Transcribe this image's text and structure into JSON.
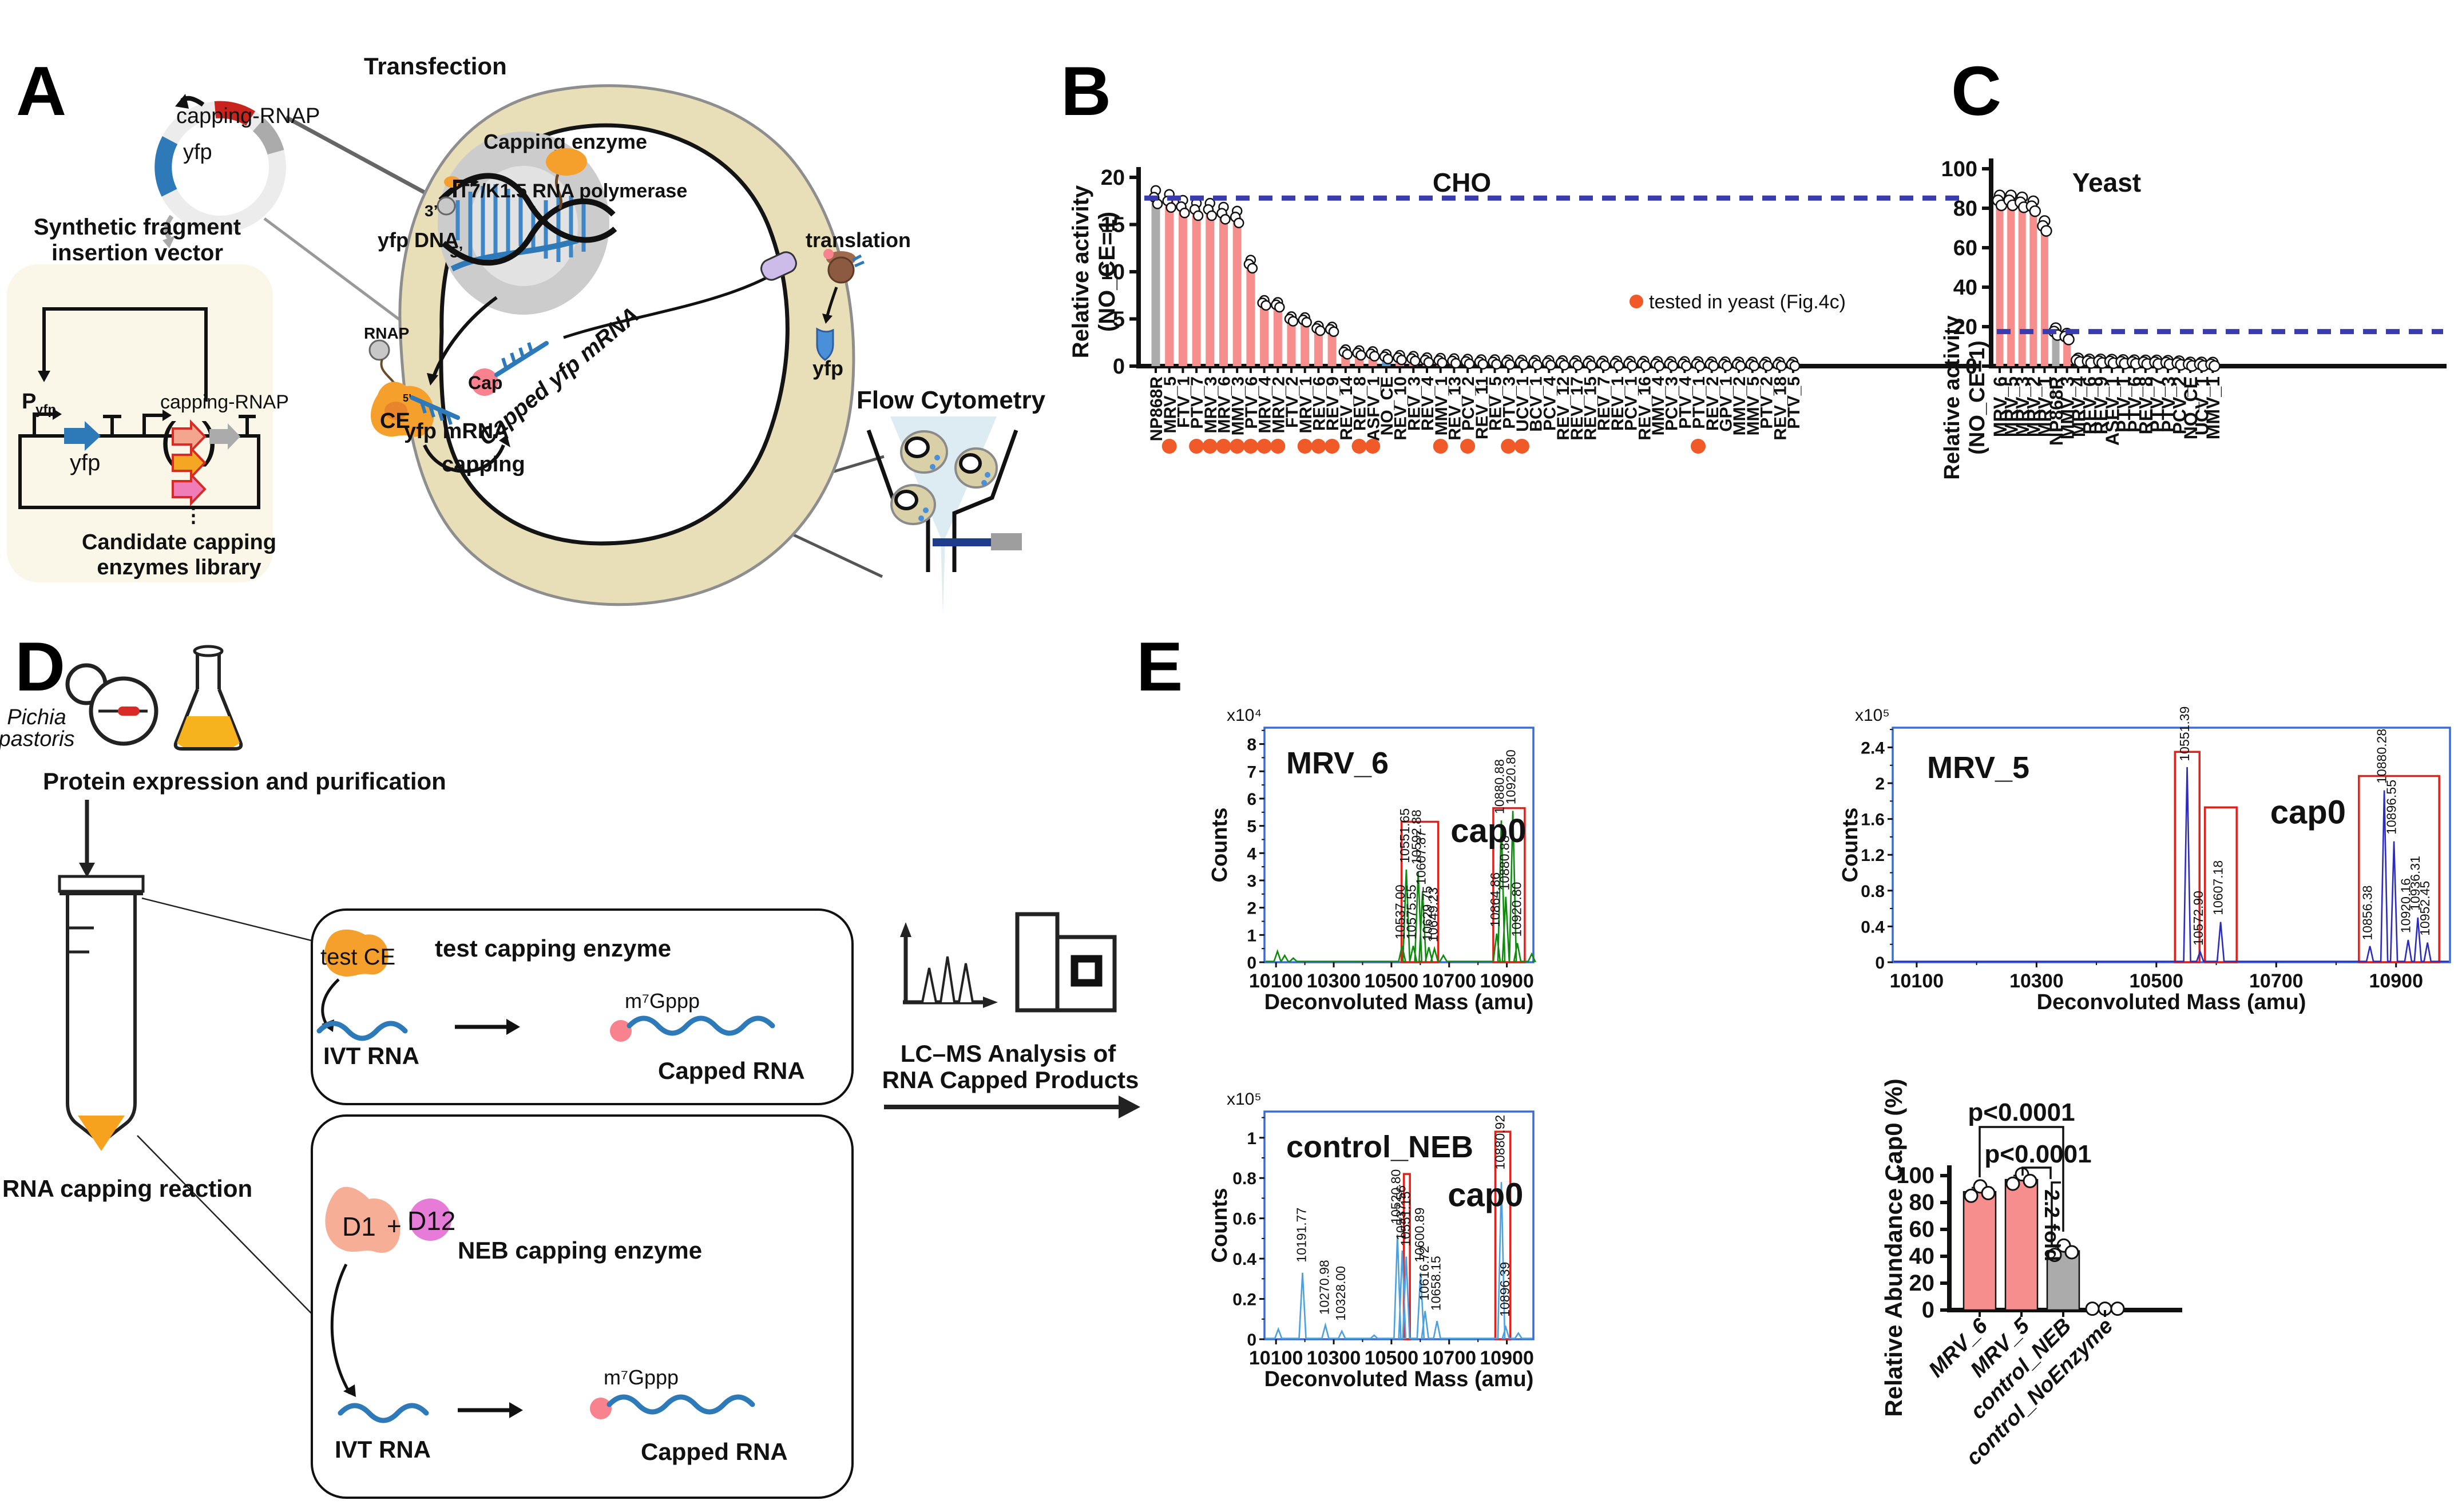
{
  "panel_labels": {
    "a": "A",
    "b": "B",
    "c": "C",
    "d": "D",
    "e": "E"
  },
  "panelA": {
    "transfection": "Transfection",
    "plasmid_gene_top": "capping-RNAP",
    "plasmid_gene_left": "yfp",
    "vector_line1": "Synthetic fragment",
    "vector_line2": "insertion vector",
    "promoter": "P",
    "promoter_sub": "yfp",
    "construct_gene": "yfp",
    "construct_insert": "capping-RNAP",
    "library_line1": "Candidate capping",
    "library_line2": "enzymes library",
    "dots": "⋮",
    "capping_enzyme": "Capping enzyme",
    "polymerase": "T7/K1.5 RNA polymerase",
    "three_prime": "3’",
    "five_prime": "5’",
    "yfp_dna": "yfp DNA",
    "rnap": "RNAP",
    "ce": "CE",
    "mrna_five_prime": "5’",
    "yfp_mrna": "yfp mRNA",
    "capping": "capping",
    "cap": "Cap",
    "capped_mrna": "Capped yfp mRNA",
    "translation": "translation",
    "yfp_protein": "yfp",
    "flow_cytometry": "Flow Cytometry"
  },
  "panelD": {
    "organism_line1": "Pichia",
    "organism_line2": "pastoris",
    "step1": "Protein expression and purification",
    "step2": "RNA capping reaction",
    "box1_title": "test capping enzyme",
    "box1_enzyme": "test CE",
    "ivt_rna": "IVT RNA",
    "cap_label": "m⁷Gppp",
    "capped_rna": "Capped RNA",
    "box2_title": "NEB capping enzyme",
    "d1": "D1",
    "plus": "+",
    "d12": "D12",
    "ivt_rna2": "IVT RNA",
    "cap_label2": "m⁷Gppp",
    "capped_rna2": "Capped RNA",
    "lcms_line1": "LC–MS Analysis of",
    "lcms_line2": "RNA Capped Products"
  },
  "chart_data": [
    {
      "id": "cho",
      "type": "bar",
      "title": "CHO",
      "ylabel_line1": "Relative activity",
      "ylabel_line2": "(NO_CE=1)",
      "ylim": [
        0,
        20
      ],
      "yticks": [
        0,
        5,
        10,
        15,
        20
      ],
      "dashed_line_y": 17.8,
      "legend": {
        "marker_color": "#F05A28",
        "text": "tested in yeast (Fig.4c)"
      },
      "default_color": "#F68E8E",
      "bar_colors": {
        "NP868R": "#ABABAB",
        "NO_CE": "#5B9BD5"
      },
      "categories": [
        "NP868R",
        "MRV_5",
        "FTV_1",
        "PTV_7",
        "MRV_3",
        "MRV_6",
        "MMV_3",
        "PTV_6",
        "MRV_4",
        "MRV_2",
        "FTV_2",
        "MRV_1",
        "REV_6",
        "REV_9",
        "REV_14",
        "REV_8",
        "ASFV_1",
        "NO_CE",
        "REV_10",
        "REV_3",
        "REV_4",
        "MMV_1",
        "REV_13",
        "PCV_2",
        "REV_11",
        "REV_5",
        "PTV_3",
        "UCV_1",
        "BCV_1",
        "PCV_4",
        "REV_12",
        "REV_17",
        "REV_15",
        "REV_7",
        "REV_1",
        "PCV_1",
        "REV_16",
        "MMV_4",
        "PCV_3",
        "PTV_4",
        "PTV_1",
        "REV_2",
        "GPV_1",
        "MMV_2",
        "MMV_5",
        "PTV_2",
        "REV_18",
        "PTV_5"
      ],
      "values": [
        17.9,
        17.5,
        16.9,
        16.6,
        16.6,
        16.2,
        15.8,
        10.8,
        6.7,
        6.5,
        5.0,
        4.9,
        4.0,
        3.9,
        1.5,
        1.4,
        1.3,
        1.0,
        0.9,
        0.8,
        0.65,
        0.6,
        0.55,
        0.5,
        0.45,
        0.45,
        0.42,
        0.4,
        0.38,
        0.36,
        0.35,
        0.34,
        0.32,
        0.3,
        0.3,
        0.28,
        0.28,
        0.26,
        0.25,
        0.25,
        0.24,
        0.22,
        0.22,
        0.2,
        0.2,
        0.2,
        0.18,
        0.18
      ],
      "tested_in_yeast": [
        "MRV_5",
        "PTV_7",
        "MRV_3",
        "MRV_6",
        "MMV_3",
        "PTV_6",
        "MRV_4",
        "MRV_2",
        "MRV_1",
        "REV_6",
        "REV_9",
        "REV_8",
        "ASFV_1",
        "MMV_1",
        "PCV_2",
        "PTV_3",
        "UCV_1",
        "PTV_1"
      ]
    },
    {
      "id": "yeast",
      "type": "bar",
      "title": "Yeast",
      "ylabel_line1": "Relative activity",
      "ylabel_line2": "(NO_CE=1)",
      "ylim": [
        0,
        100
      ],
      "yticks": [
        0,
        20,
        40,
        60,
        80,
        100
      ],
      "dashed_line_y": 17.5,
      "default_color": "#F68E8E",
      "bar_colors": {
        "NP868R": "#ABABAB",
        "NO_CE": "#5B9BD5"
      },
      "categories": [
        "MRV_6",
        "MRV_5",
        "MRV_3",
        "MRV_2",
        "MRV_1",
        "NP868R",
        "MMV_3",
        "MRV_4",
        "REV_6",
        "REV_9",
        "ASFV_1",
        "PTV_1",
        "PTV_6",
        "REV_8",
        "PTV_7",
        "PTV_3",
        "PCV_2",
        "NO_CE",
        "UCV_1",
        "MMV_1"
      ],
      "values": [
        84,
        84,
        83,
        81,
        71,
        17.5,
        15,
        3,
        2.5,
        2.5,
        2.4,
        2.2,
        2.1,
        2,
        2,
        1.8,
        1.6,
        1,
        1,
        0.9
      ]
    },
    {
      "id": "ms_mrv6",
      "type": "line",
      "title": "MRV_6",
      "trace_color": "#0F8A0F",
      "scale_label": "x10⁴",
      "ylabel": "Counts",
      "xlabel": "Deconvoluted Mass (amu)",
      "xlim": [
        10060,
        10992
      ],
      "xticks": [
        10100,
        10300,
        10500,
        10700,
        10900
      ],
      "ylim": [
        0,
        8.6
      ],
      "yticks": [
        0,
        1,
        2,
        3,
        4,
        5,
        6,
        7,
        8
      ],
      "peaks": [
        [
          10105,
          0.4
        ],
        [
          10130,
          0.25
        ],
        [
          10160,
          0.15
        ],
        [
          10537,
          0.6
        ],
        [
          10551.65,
          3.4
        ],
        [
          10575.55,
          0.6
        ],
        [
          10592.88,
          3.3
        ],
        [
          10607.87,
          2.6
        ],
        [
          10629.75,
          0.55
        ],
        [
          10649.23,
          0.5
        ],
        [
          10680,
          0.25
        ],
        [
          10864.86,
          1.05
        ],
        [
          10880.88,
          5.2
        ],
        [
          10896.5,
          2.4
        ],
        [
          10920.8,
          5.55
        ],
        [
          10936.5,
          0.7
        ],
        [
          10986,
          0.3
        ]
      ],
      "peak_labels": [
        [
          "10537.00",
          10528,
          0.75
        ],
        [
          "10551.65",
          10544,
          3.55
        ],
        [
          "10575.55",
          10567,
          0.75
        ],
        [
          "10592.88",
          10585,
          3.5
        ],
        [
          "10607.87",
          10600,
          2.75
        ],
        [
          "10629.75",
          10622,
          0.7
        ],
        [
          "10649.23",
          10642,
          0.65
        ],
        [
          "10864.86",
          10857,
          1.2
        ],
        [
          "10880.88",
          10872,
          5.35
        ],
        [
          "10880.88",
          10890,
          2.55
        ],
        [
          "10920.80",
          10912,
          5.7
        ],
        [
          "10920.80",
          10932,
          0.85
        ]
      ],
      "cap0": {
        "text": "cap0",
        "x": 10705,
        "y": 4.4
      },
      "boxes": [
        [
          10535,
          10662,
          5.15
        ],
        [
          10853,
          10962,
          5.65
        ]
      ]
    },
    {
      "id": "ms_mrv5",
      "type": "line",
      "title": "MRV_5",
      "trace_color": "#2B2BC0",
      "scale_label": "x10⁵",
      "ylabel": "Counts",
      "xlabel": "Deconvoluted Mass (amu)",
      "xlim": [
        10060,
        10990
      ],
      "xticks": [
        10100,
        10300,
        10500,
        10700,
        10900
      ],
      "ylim": [
        0,
        2.62
      ],
      "yticks": [
        0,
        0.4,
        0.8,
        1.2,
        1.6,
        2.0,
        2.4
      ],
      "peaks": [
        [
          10551.39,
          2.18
        ],
        [
          10572.9,
          0.12
        ],
        [
          10607.18,
          0.45
        ],
        [
          10856.38,
          0.18
        ],
        [
          10880.28,
          1.92
        ],
        [
          10896.55,
          1.35
        ],
        [
          10920.16,
          0.25
        ],
        [
          10936.31,
          0.5
        ],
        [
          10952.45,
          0.22
        ]
      ],
      "peak_labels": [
        [
          "10551.39",
          10546,
          2.22
        ],
        [
          "10572.90",
          10569,
          0.16
        ],
        [
          "10607.18",
          10602,
          0.5
        ],
        [
          "10856.38",
          10851,
          0.22
        ],
        [
          "10880.28",
          10875,
          1.97
        ],
        [
          "10896.55",
          10891,
          1.4
        ],
        [
          "10920.16",
          10915,
          0.3
        ],
        [
          "10936.31",
          10931,
          0.55
        ],
        [
          "10952.45",
          10947,
          0.27
        ]
      ],
      "cap0": {
        "text": "cap0",
        "x": 10690,
        "y": 1.55
      },
      "boxes": [
        [
          10531,
          10572,
          2.35
        ],
        [
          10581,
          10634,
          1.73
        ],
        [
          10838,
          10972,
          2.08
        ]
      ]
    },
    {
      "id": "ms_neb",
      "type": "line",
      "title": "control_NEB",
      "trace_color": "#4AA0E0",
      "scale_label": "x10⁵",
      "ylabel": "Counts",
      "xlabel": "Deconvoluted Mass (amu)",
      "xlim": [
        10060,
        10992
      ],
      "xticks": [
        10100,
        10300,
        10500,
        10700,
        10900
      ],
      "ylim": [
        0,
        1.13
      ],
      "yticks": [
        0,
        0.2,
        0.4,
        0.6,
        0.8,
        1
      ],
      "peaks": [
        [
          10108,
          0.05
        ],
        [
          10191.77,
          0.33
        ],
        [
          10270.98,
          0.07
        ],
        [
          10328,
          0.04
        ],
        [
          10440,
          0.02
        ],
        [
          10520.8,
          0.52
        ],
        [
          10537.56,
          0.44
        ],
        [
          10551.15,
          0.41
        ],
        [
          10600.89,
          0.33
        ],
        [
          10616.72,
          0.14
        ],
        [
          10658.15,
          0.09
        ],
        [
          10880.92,
          0.78
        ],
        [
          10896.39,
          0.06
        ],
        [
          10940,
          0.03
        ]
      ],
      "peak_labels": [
        [
          "10191.77",
          10186,
          0.37
        ],
        [
          "10270.98",
          10265,
          0.11
        ],
        [
          "10328.00",
          10322,
          0.08
        ],
        [
          "10520.80",
          10513,
          0.56
        ],
        [
          "10537.56",
          10531,
          0.48
        ],
        [
          "10551.15",
          10547,
          0.45
        ],
        [
          "10600.89",
          10595,
          0.37
        ],
        [
          "10616.72",
          10611,
          0.18
        ],
        [
          "10658.15",
          10652,
          0.13
        ],
        [
          "10880.92",
          10874,
          0.83
        ],
        [
          "10896.39",
          10891,
          0.1
        ]
      ],
      "cap0": {
        "text": "cap0",
        "x": 10695,
        "y": 0.66
      },
      "boxes": [
        [
          10543,
          10564,
          0.82
        ],
        [
          10860,
          10912,
          1.03
        ]
      ]
    },
    {
      "id": "cap0_bar",
      "type": "bar",
      "ylabel": "Relative Abundance Cap0 (%)",
      "ylim": [
        0,
        100
      ],
      "yticks": [
        0,
        20,
        40,
        60,
        80,
        100
      ],
      "categories": [
        "MRV_6",
        "MRV_5",
        "control_NEB",
        "control_NoEnzyme"
      ],
      "values": [
        88,
        97,
        44,
        0
      ],
      "colors": [
        "#F68E8E",
        "#F68E8E",
        "#ABABAB",
        "none"
      ],
      "significance": [
        {
          "label": "p<0.0001",
          "from": 0,
          "to": 2
        },
        {
          "label": "p<0.0001",
          "from": 1,
          "to": 2
        }
      ],
      "fold_label": "2.2 fold"
    }
  ]
}
